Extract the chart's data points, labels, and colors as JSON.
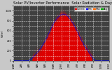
{
  "title": "Solar PV/Inverter Performance  Solar Radiation & Day Average per Minute",
  "title_fontsize": 3.8,
  "bg_color": "#c8c8c8",
  "plot_bg_color": "#404040",
  "area_color": "#dd0000",
  "line_color": "#0000dd",
  "ylabel": "W/m²",
  "ylabel_fontsize": 3.0,
  "tick_fontsize": 2.5,
  "ylim": [
    0,
    1100
  ],
  "ytick_count": 11,
  "xlim": [
    0,
    1440
  ],
  "legend_labels": [
    "Current",
    "Min",
    "Max",
    "Avg"
  ],
  "legend_colors": [
    "#dd0000",
    "#0000ff",
    "#ff6600",
    "#00aa00"
  ],
  "n_points": 1440,
  "peak_minute": 750,
  "peak_value": 950,
  "sigma_minutes": 210,
  "sunrise_minute": 280,
  "sunset_minute": 1180,
  "noise_scale": 60
}
